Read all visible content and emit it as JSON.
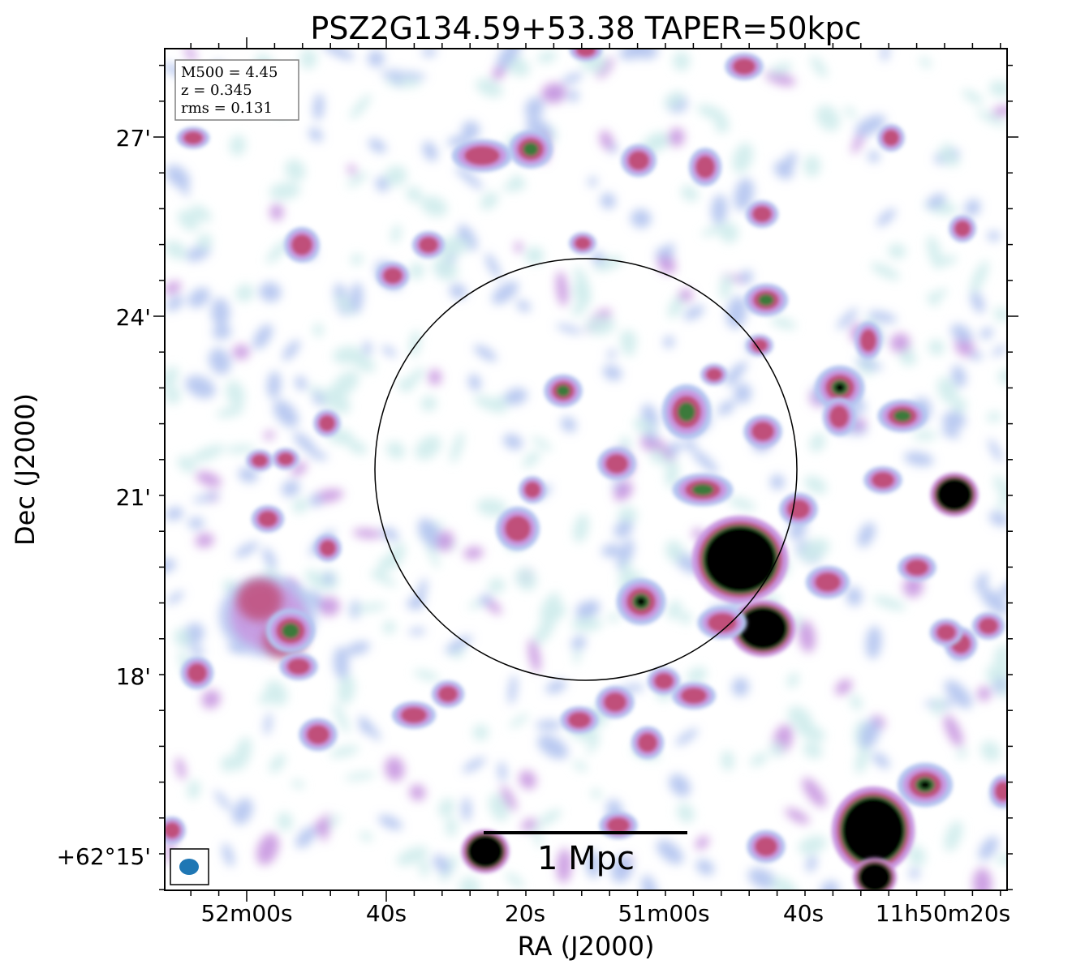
{
  "figure": {
    "title": "PSZ2G134.59+53.38 TAPER=50kpc",
    "x_axis_label": "RA (J2000)",
    "y_axis_label": "Dec (J2000)",
    "x_ticks": [
      "52m00s",
      "40s",
      "20s",
      "51m00s",
      "40s",
      "11h50m20s"
    ],
    "y_ticks": [
      "27'",
      "24'",
      "21'",
      "18'",
      "+62°15'"
    ],
    "info_box": {
      "m500": "M500 = 4.45",
      "z": "z = 0.345",
      "rms": "rms = 0.131"
    },
    "scale_bar_label": "1 Mpc",
    "colormap": [
      "#ffffff",
      "#cfecec",
      "#b3c4f0",
      "#c896e0",
      "#c0507a",
      "#3a7a3a",
      "#000000"
    ],
    "beam_color": "#1f77b4"
  }
}
